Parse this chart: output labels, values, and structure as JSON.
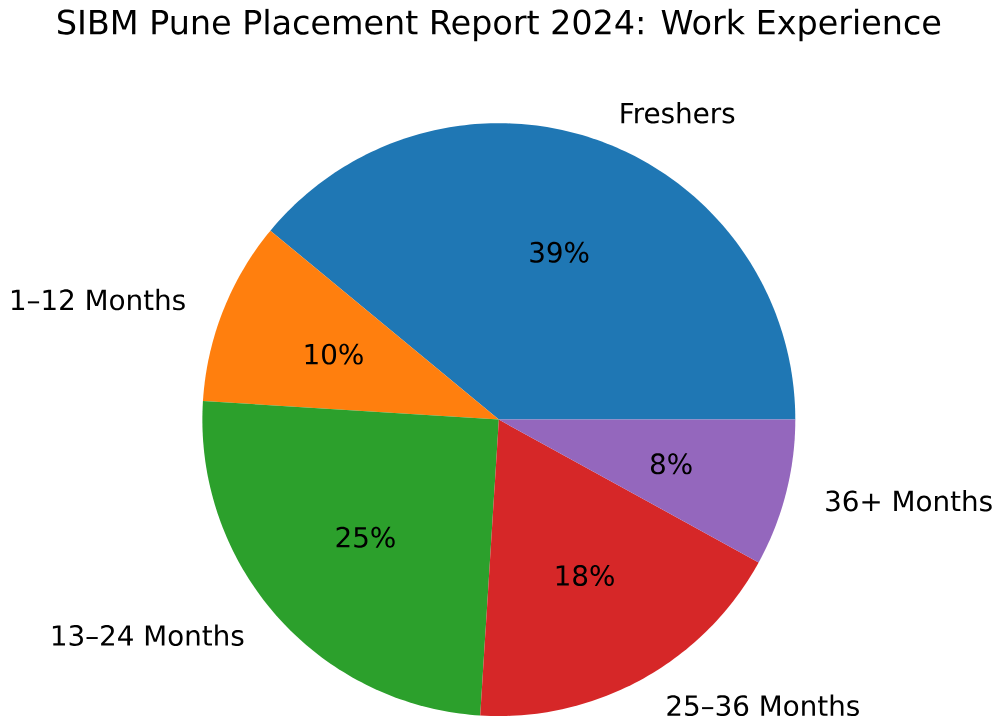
{
  "chart_data": {
    "type": "pie",
    "title": "SIBM Pune Placement Report 2024: Work Experience",
    "categories": [
      "Freshers",
      "1–12 Months",
      "13–24 Months",
      "25–36 Months",
      "36+ Months"
    ],
    "values": [
      39,
      10,
      25,
      18,
      8
    ],
    "value_labels": [
      "39%",
      "10%",
      "25%",
      "18%",
      "8%"
    ],
    "colors": [
      "#1f77b4",
      "#ff7f0e",
      "#2ca02c",
      "#d62728",
      "#9467bd"
    ]
  }
}
